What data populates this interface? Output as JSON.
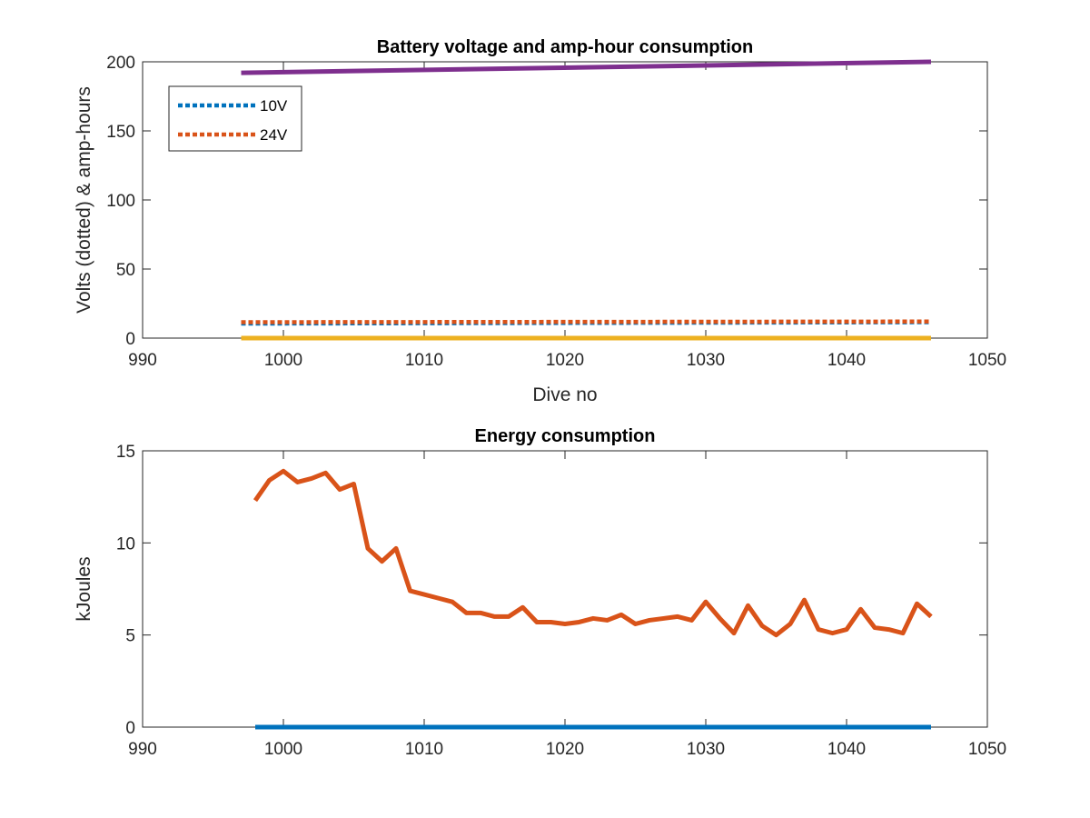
{
  "chart_data": [
    {
      "type": "line",
      "title": "Battery voltage and amp-hour consumption",
      "xlabel": "Dive no",
      "ylabel": "Volts (dotted) & amp-hours",
      "xlim": [
        990,
        1050
      ],
      "ylim": [
        0,
        200
      ],
      "xticks": [
        990,
        1000,
        1010,
        1020,
        1030,
        1040,
        1050
      ],
      "yticks": [
        0,
        50,
        100,
        150,
        200
      ],
      "grid": false,
      "legend": {
        "placement": "top-left",
        "entries": [
          "10V",
          "24V"
        ]
      },
      "series": [
        {
          "name": "10V",
          "style": "dotted",
          "color": "#0072BD",
          "x": [
            997,
            1046
          ],
          "y": [
            10.5,
            11.5
          ]
        },
        {
          "name": "24V",
          "style": "dotted",
          "color": "#D95319",
          "x": [
            997,
            1046
          ],
          "y": [
            11.5,
            12.0
          ]
        },
        {
          "style": "solid",
          "color": "#EDB120",
          "x": [
            997,
            1046
          ],
          "y": [
            0,
            0
          ]
        },
        {
          "style": "solid",
          "color": "#7E2F8E",
          "x": [
            997,
            1046
          ],
          "y": [
            192,
            200
          ]
        }
      ]
    },
    {
      "type": "line",
      "title": "Energy consumption",
      "xlabel": "",
      "ylabel": "kJoules",
      "xlim": [
        990,
        1050
      ],
      "ylim": [
        0,
        15
      ],
      "xticks": [
        990,
        1000,
        1010,
        1020,
        1030,
        1040,
        1050
      ],
      "yticks": [
        0,
        5,
        10,
        15
      ],
      "grid": false,
      "series": [
        {
          "style": "solid",
          "color": "#D95319",
          "x": [
            998,
            999,
            1000,
            1001,
            1002,
            1003,
            1004,
            1005,
            1006,
            1007,
            1008,
            1009,
            1010,
            1011,
            1012,
            1013,
            1014,
            1015,
            1016,
            1017,
            1018,
            1019,
            1020,
            1021,
            1022,
            1023,
            1024,
            1025,
            1026,
            1027,
            1028,
            1029,
            1030,
            1031,
            1032,
            1033,
            1034,
            1035,
            1036,
            1037,
            1038,
            1039,
            1040,
            1041,
            1042,
            1043,
            1044,
            1045,
            1046
          ],
          "y": [
            12.3,
            13.4,
            13.9,
            13.3,
            13.5,
            13.8,
            12.9,
            13.2,
            9.7,
            9.0,
            9.7,
            7.4,
            7.2,
            7.0,
            6.8,
            6.2,
            6.2,
            6.0,
            6.0,
            6.5,
            5.7,
            5.7,
            5.6,
            5.7,
            5.9,
            5.8,
            6.1,
            5.6,
            5.8,
            5.9,
            6.0,
            5.8,
            6.8,
            5.9,
            5.1,
            6.6,
            5.5,
            5.0,
            5.6,
            6.9,
            5.3,
            5.1,
            5.3,
            6.4,
            5.4,
            5.3,
            5.1,
            6.7,
            6.0
          ]
        },
        {
          "style": "solid",
          "color": "#0072BD",
          "x": [
            998,
            1046
          ],
          "y": [
            0,
            0
          ]
        }
      ]
    }
  ]
}
